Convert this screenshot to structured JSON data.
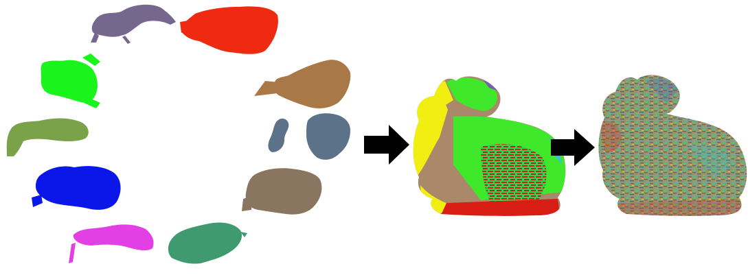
{
  "figure": {
    "stages": [
      "partial-scans",
      "coarse-merged-model",
      "refined-merged-model"
    ],
    "scan_colors": {
      "purple": "#76678f",
      "red": "#ee2a10",
      "green": "#1bf31d",
      "olive": "#7aa248",
      "blue": "#0a17e8",
      "magenta": "#e23fe4",
      "teal": "#3f9a6f",
      "brown": "#8a7660",
      "slate": "#5b7289",
      "copper": "#a97847"
    },
    "model_colors": {
      "coarse_base": "#a9896a",
      "coarse_yellow": "#f1ee12",
      "coarse_green": "#3fe82a",
      "coarse_red": "#d81e14",
      "fine_base": "#8c9a78",
      "fine_red": "#d23a2a",
      "fine_blue": "#3c57c4",
      "fine_cyan": "#37c6c7"
    },
    "arrow_color": "#000000"
  }
}
